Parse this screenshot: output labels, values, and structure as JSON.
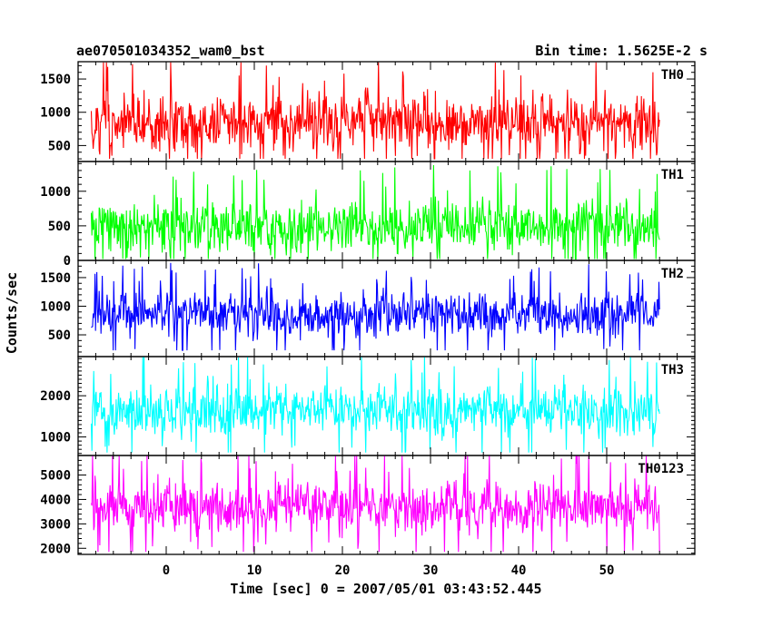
{
  "chart_data": {
    "type": "line",
    "title_left": "ae070501034352_wam0_bst",
    "title_right": "Bin time: 1.5625E-2 s",
    "xlabel": "Time [sec] 0 = 2007/05/01 03:43:52.445",
    "ylabel": "Counts/sec",
    "xlim": [
      -10,
      60
    ],
    "x_ticks": [
      0,
      10,
      20,
      30,
      40,
      50
    ],
    "data_x_range": [
      -8.5,
      56
    ],
    "panels": [
      {
        "name": "TH0",
        "color": "#ff0000",
        "ylim": [
          260,
          1760
        ],
        "y_ticks": [
          500,
          1000,
          1500
        ],
        "series": {
          "x_start": -8.5,
          "x_end": 56,
          "mean": 850,
          "spread": 560,
          "min": 300,
          "max": 1750
        }
      },
      {
        "name": "TH1",
        "color": "#00ff00",
        "ylim": [
          0,
          1430
        ],
        "y_ticks": [
          0,
          500,
          1000
        ],
        "series": {
          "x_start": -8.5,
          "x_end": 56,
          "mean": 500,
          "spread": 480,
          "min": 20,
          "max": 1420
        }
      },
      {
        "name": "TH2",
        "color": "#0000ff",
        "ylim": [
          120,
          1800
        ],
        "y_ticks": [
          500,
          1000,
          1500
        ],
        "series": {
          "x_start": -8.5,
          "x_end": 56,
          "mean": 850,
          "spread": 480,
          "min": 230,
          "max": 1780
        }
      },
      {
        "name": "TH3",
        "color": "#00ffff",
        "ylim": [
          550,
          2950
        ],
        "y_ticks": [
          1000,
          2000
        ],
        "series": {
          "x_start": -8.5,
          "x_end": 56,
          "mean": 1650,
          "spread": 750,
          "min": 620,
          "max": 2940
        }
      },
      {
        "name": "TH0123",
        "color": "#ff00ff",
        "ylim": [
          1750,
          5800
        ],
        "y_ticks": [
          2000,
          3000,
          4000,
          5000
        ],
        "series": {
          "x_start": -8.5,
          "x_end": 56,
          "mean": 3700,
          "spread": 1300,
          "min": 1850,
          "max": 5800
        }
      }
    ]
  }
}
